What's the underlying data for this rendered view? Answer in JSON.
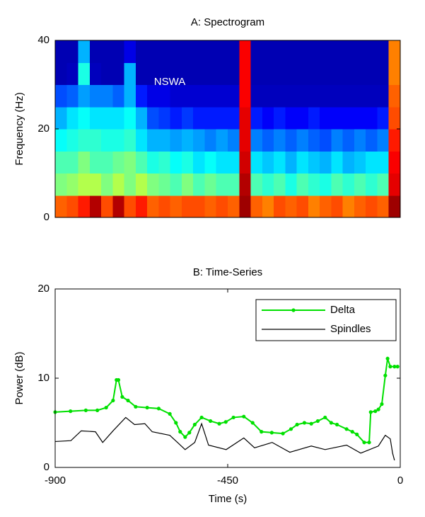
{
  "chart_data": [
    {
      "type": "heatmap",
      "title": "A: Spectrogram",
      "ylabel": "Frequency (Hz)",
      "annotation": "NSWA",
      "colormap": "jet",
      "xlim": [
        -900,
        0
      ],
      "ylim": [
        0,
        40
      ],
      "yticks": [
        0,
        20,
        40
      ],
      "z": [
        [
          0.78,
          0.8,
          0.85,
          0.95,
          0.8,
          0.95,
          0.8,
          0.85,
          0.78,
          0.8,
          0.78,
          0.8,
          0.8,
          0.78,
          0.8,
          0.78,
          0.97,
          0.78,
          0.75,
          0.8,
          0.78,
          0.8,
          0.75,
          0.78,
          0.8,
          0.75,
          0.78,
          0.8,
          0.78,
          0.97
        ],
        [
          0.5,
          0.52,
          0.55,
          0.55,
          0.5,
          0.55,
          0.5,
          0.55,
          0.5,
          0.48,
          0.45,
          0.5,
          0.45,
          0.48,
          0.45,
          0.45,
          0.95,
          0.45,
          0.42,
          0.45,
          0.4,
          0.45,
          0.42,
          0.4,
          0.45,
          0.42,
          0.45,
          0.42,
          0.45,
          0.9
        ],
        [
          0.45,
          0.45,
          0.5,
          0.45,
          0.45,
          0.48,
          0.5,
          0.45,
          0.4,
          0.42,
          0.38,
          0.4,
          0.35,
          0.38,
          0.35,
          0.35,
          0.92,
          0.35,
          0.32,
          0.35,
          0.3,
          0.35,
          0.32,
          0.3,
          0.35,
          0.3,
          0.32,
          0.35,
          0.35,
          0.88
        ],
        [
          0.38,
          0.4,
          0.42,
          0.42,
          0.4,
          0.4,
          0.42,
          0.35,
          0.3,
          0.3,
          0.28,
          0.3,
          0.28,
          0.25,
          0.28,
          0.25,
          0.9,
          0.25,
          0.22,
          0.25,
          0.22,
          0.25,
          0.22,
          0.2,
          0.25,
          0.22,
          0.25,
          0.22,
          0.25,
          0.85
        ],
        [
          0.3,
          0.35,
          0.38,
          0.35,
          0.35,
          0.35,
          0.38,
          0.3,
          0.2,
          0.18,
          0.15,
          0.18,
          0.15,
          0.15,
          0.15,
          0.15,
          0.9,
          0.15,
          0.12,
          0.15,
          0.12,
          0.12,
          0.15,
          0.12,
          0.12,
          0.12,
          0.12,
          0.12,
          0.15,
          0.8
        ],
        [
          0.2,
          0.22,
          0.28,
          0.25,
          0.25,
          0.22,
          0.3,
          0.15,
          0.1,
          0.1,
          0.08,
          0.08,
          0.08,
          0.08,
          0.08,
          0.08,
          0.88,
          0.06,
          0.06,
          0.06,
          0.06,
          0.06,
          0.06,
          0.06,
          0.06,
          0.06,
          0.06,
          0.06,
          0.06,
          0.78
        ],
        [
          0.05,
          0.06,
          0.4,
          0.06,
          0.05,
          0.05,
          0.3,
          0.05,
          0.05,
          0.05,
          0.05,
          0.05,
          0.05,
          0.05,
          0.05,
          0.05,
          0.88,
          0.05,
          0.05,
          0.05,
          0.05,
          0.05,
          0.05,
          0.05,
          0.05,
          0.05,
          0.05,
          0.05,
          0.05,
          0.75
        ],
        [
          0.05,
          0.05,
          0.3,
          0.05,
          0.05,
          0.05,
          0.1,
          0.05,
          0.05,
          0.05,
          0.05,
          0.05,
          0.05,
          0.05,
          0.05,
          0.05,
          0.88,
          0.05,
          0.05,
          0.05,
          0.05,
          0.05,
          0.05,
          0.05,
          0.05,
          0.05,
          0.05,
          0.05,
          0.05,
          0.75
        ]
      ]
    },
    {
      "type": "line",
      "title": "B: Time-Series",
      "xlabel": "Time (s)",
      "ylabel": "Power (dB)",
      "xlim": [
        -900,
        0
      ],
      "xticks": [
        -900,
        -450,
        0
      ],
      "ylim": [
        0,
        20
      ],
      "yticks": [
        0,
        10,
        20
      ],
      "legend": "upper right",
      "series": [
        {
          "name": "Delta",
          "color": "#00e000",
          "marker": true,
          "x": [
            -900,
            -860,
            -820,
            -790,
            -767,
            -749,
            -740,
            -735,
            -725,
            -710,
            -690,
            -660,
            -630,
            -601,
            -585,
            -574,
            -561,
            -550,
            -536,
            -518,
            -495,
            -472,
            -455,
            -435,
            -408,
            -385,
            -362,
            -335,
            -306,
            -285,
            -269,
            -250,
            -232,
            -215,
            -196,
            -180,
            -165,
            -140,
            -125,
            -113,
            -94,
            -81,
            -77,
            -65,
            -57,
            -48,
            -39,
            -33,
            -26,
            -15,
            -7
          ],
          "values": [
            6.2,
            6.3,
            6.4,
            6.4,
            6.7,
            7.5,
            9.8,
            9.8,
            7.9,
            7.5,
            6.8,
            6.7,
            6.6,
            6,
            5,
            4,
            3.4,
            3.9,
            4.8,
            5.6,
            5.2,
            4.9,
            5.1,
            5.6,
            5.7,
            5,
            4,
            3.9,
            3.8,
            4.3,
            4.8,
            5,
            4.9,
            5.2,
            5.6,
            5,
            4.8,
            4.3,
            4,
            3.7,
            2.8,
            2.8,
            6.2,
            6.3,
            6.5,
            7.1,
            10.3,
            12.2,
            11.3,
            11.3,
            11.3
          ]
        },
        {
          "name": "Spindles",
          "color": "#000000",
          "marker": false,
          "x": [
            -900,
            -859,
            -832,
            -795,
            -776,
            -749,
            -716,
            -693,
            -666,
            -647,
            -601,
            -561,
            -536,
            -518,
            -500,
            -454,
            -408,
            -380,
            -334,
            -288,
            -232,
            -196,
            -140,
            -103,
            -57,
            -39,
            -26,
            -20,
            -15
          ],
          "values": [
            2.9,
            3,
            4.1,
            4,
            2.8,
            4.1,
            5.6,
            4.8,
            4.9,
            4,
            3.6,
            2,
            2.8,
            4.9,
            2.5,
            2,
            3.3,
            2.2,
            2.8,
            1.7,
            2.4,
            2,
            2.5,
            1.6,
            2.4,
            3.6,
            3.2,
            1.6,
            0.8
          ]
        }
      ]
    }
  ]
}
